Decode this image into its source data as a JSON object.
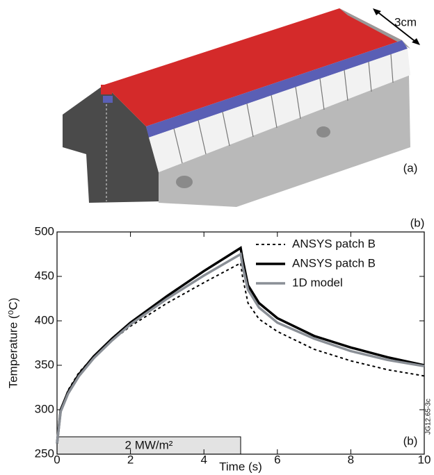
{
  "figure": {
    "scale_label": "3cm",
    "panel_a_label": "(a)",
    "panel_b_label": "(b)",
    "code": "JG12.65-3c"
  },
  "chart_data": {
    "type": "line",
    "ylabel": "Temperature (⁰C)",
    "xlabel": "Time (s)",
    "annotation": "(b)",
    "pulse": {
      "label": "2 MW/m²",
      "x": [
        0,
        5
      ]
    },
    "x": [
      0,
      0.1,
      0.3,
      0.6,
      1,
      1.5,
      2,
      3,
      4,
      5,
      5.05,
      5.2,
      5.5,
      6,
      7,
      8,
      9,
      10
    ],
    "series": [
      {
        "name": "ANSYS patch B",
        "color": "#000000",
        "style": "dotted",
        "values": [
          262,
          300,
          322,
          342,
          360,
          378,
          394,
          420,
          443,
          465,
          450,
          420,
          402,
          388,
          368,
          355,
          345,
          338
        ]
      },
      {
        "name": "ANSYS patch B",
        "color": "#000000",
        "style": "solid",
        "values": [
          262,
          300,
          320,
          340,
          360,
          380,
          398,
          428,
          456,
          482,
          470,
          440,
          420,
          403,
          383,
          370,
          359,
          350
        ]
      },
      {
        "name": "1D model",
        "color": "#8a8f96",
        "style": "solid",
        "values": [
          262,
          298,
          318,
          338,
          358,
          378,
          396,
          425,
          451,
          475,
          462,
          435,
          415,
          398,
          380,
          366,
          356,
          349
        ]
      }
    ],
    "xlim": [
      0,
      10
    ],
    "ylim": [
      250,
      500
    ],
    "xticks": [
      0,
      2,
      4,
      6,
      8,
      10
    ],
    "yticks": [
      250,
      300,
      350,
      400,
      450,
      500
    ],
    "legend": "upper-right"
  }
}
